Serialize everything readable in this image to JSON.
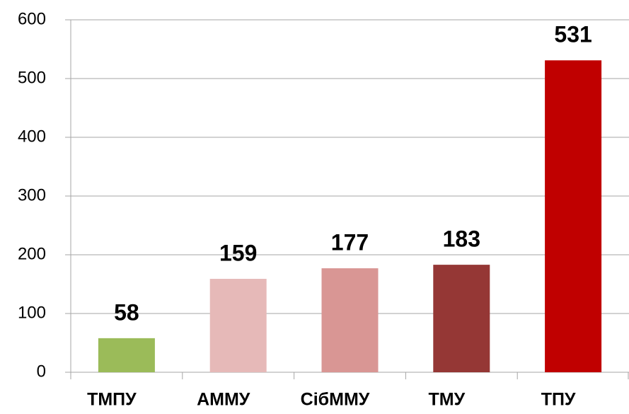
{
  "chart_data": {
    "type": "bar",
    "categories": [
      "ТМПУ",
      "АММУ",
      "СібММУ",
      "ТМУ",
      "ТПУ"
    ],
    "values": [
      58,
      159,
      177,
      183,
      531
    ],
    "colors": [
      "#9bbb59",
      "#e6b9b8",
      "#d99694",
      "#953735",
      "#c00000"
    ],
    "ylim": [
      0,
      600
    ],
    "yticks": [
      0,
      100,
      200,
      300,
      400,
      500,
      600
    ],
    "grid": true
  }
}
